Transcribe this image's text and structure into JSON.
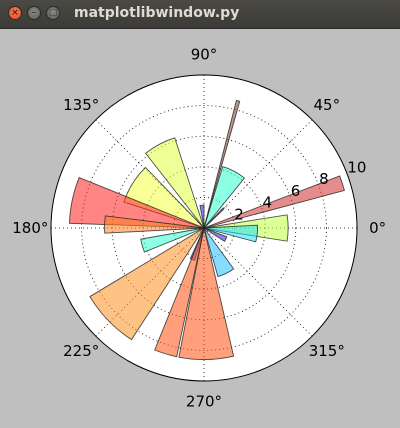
{
  "window": {
    "title": "matplotlibwindow.py",
    "buttons": [
      {
        "name": "close-button",
        "glyph": "×"
      },
      {
        "name": "minimize-button",
        "glyph": "–"
      },
      {
        "name": "maximize-button",
        "glyph": "□"
      }
    ]
  },
  "chart_data": {
    "type": "bar",
    "projection": "polar",
    "title": "",
    "angular_tick_labels": [
      "0°",
      "45°",
      "90°",
      "135°",
      "180°",
      "225°",
      "270°",
      "315°"
    ],
    "angular_ticks_deg": [
      0,
      45,
      90,
      135,
      180,
      225,
      270,
      315
    ],
    "radial_tick_labels": [
      "2",
      "4",
      "6",
      "8",
      "10"
    ],
    "radial_ticks": [
      2,
      4,
      6,
      8,
      10
    ],
    "rlim": [
      0,
      10
    ],
    "grid": true,
    "bars": [
      {
        "theta_deg": 0,
        "width_deg": 18,
        "radius": 5.5,
        "color": "#bfff40"
      },
      {
        "theta_deg": -6,
        "width_deg": 18,
        "radius": 3.5,
        "color": "#20e0ff"
      },
      {
        "theta_deg": 18,
        "width_deg": 6,
        "radius": 9.5,
        "color": "#d03030"
      },
      {
        "theta_deg": 45,
        "width_deg": 3,
        "radius": 1.8,
        "color": "#4040ff"
      },
      {
        "theta_deg": 62,
        "width_deg": 22,
        "radius": 4.2,
        "color": "#30ffd0"
      },
      {
        "theta_deg": 75,
        "width_deg": 1.5,
        "radius": 8.6,
        "color": "#804020"
      },
      {
        "theta_deg": 95,
        "width_deg": 10,
        "radius": 1.5,
        "color": "#2020e0"
      },
      {
        "theta_deg": 118,
        "width_deg": 20,
        "radius": 6.2,
        "color": "#e0ff40"
      },
      {
        "theta_deg": 148,
        "width_deg": 28,
        "radius": 5.5,
        "color": "#f0ff40"
      },
      {
        "theta_deg": 168,
        "width_deg": 20,
        "radius": 8.8,
        "color": "#ff2020"
      },
      {
        "theta_deg": 178,
        "width_deg": 10,
        "radius": 6.5,
        "color": "#ff8020"
      },
      {
        "theta_deg": 196,
        "width_deg": 12,
        "radius": 4.2,
        "color": "#30ffd0"
      },
      {
        "theta_deg": 224,
        "width_deg": 26,
        "radius": 8.7,
        "color": "#ff9020"
      },
      {
        "theta_deg": 250,
        "width_deg": 8,
        "radius": 2.2,
        "color": "#4040ff"
      },
      {
        "theta_deg": 253,
        "width_deg": 10,
        "radius": 8.6,
        "color": "#ff5010"
      },
      {
        "theta_deg": 271,
        "width_deg": 24,
        "radius": 8.6,
        "color": "#ff5010"
      },
      {
        "theta_deg": 296,
        "width_deg": 20,
        "radius": 3.3,
        "color": "#20c0ff"
      },
      {
        "theta_deg": 333,
        "width_deg": 12,
        "radius": 1.6,
        "color": "#2020e0"
      }
    ]
  }
}
